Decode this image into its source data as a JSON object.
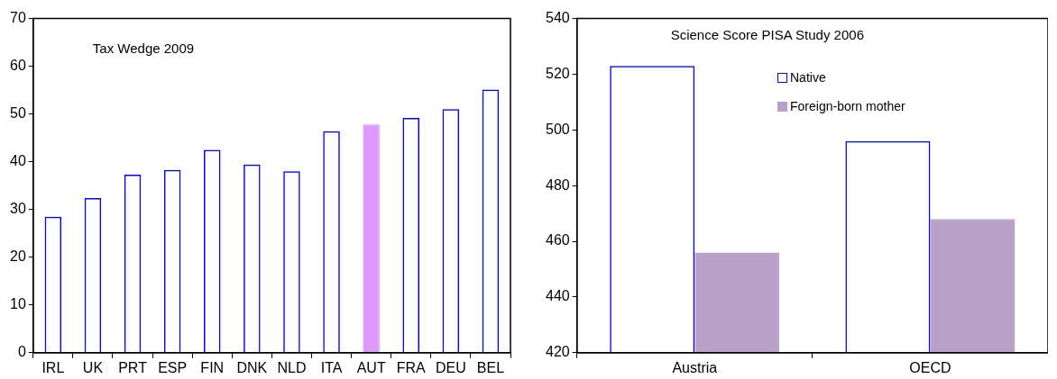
{
  "chart_data": [
    {
      "type": "bar",
      "title": "Tax Wedge 2009",
      "categories": [
        "IRL",
        "UK",
        "PRT",
        "ESP",
        "FIN",
        "DNK",
        "NLD",
        "ITA",
        "AUT",
        "FRA",
        "DEU",
        "BEL"
      ],
      "values": [
        28.5,
        32.4,
        37.3,
        38.3,
        42.5,
        39.4,
        38.0,
        46.4,
        47.8,
        49.2,
        51.0,
        55.1
      ],
      "colors": [
        "#0000ff",
        "#0000ff",
        "#0000ff",
        "#0000ff",
        "#0000ff",
        "#0000ff",
        "#0000ff",
        "#0000ff",
        "#dd99ff",
        "#0000ff",
        "#0000ff",
        "#0000ff"
      ],
      "ylim": [
        0,
        70
      ],
      "yticks": [
        0,
        10,
        20,
        30,
        40,
        50,
        60,
        70
      ],
      "grid": false,
      "legend": false
    },
    {
      "type": "bar",
      "title": "Science Score PISA Study 2006",
      "categories": [
        "Austria",
        "OECD"
      ],
      "series": [
        {
          "name": "Native",
          "color": "#0000ff",
          "values": [
            523,
            496
          ]
        },
        {
          "name": "Foreign-born mother",
          "color": "#b9a0c9",
          "values": [
            456,
            468
          ]
        }
      ],
      "ylim": [
        420,
        540
      ],
      "yticks": [
        420,
        440,
        460,
        480,
        500,
        520,
        540
      ],
      "grid": false,
      "legend": "top"
    }
  ]
}
